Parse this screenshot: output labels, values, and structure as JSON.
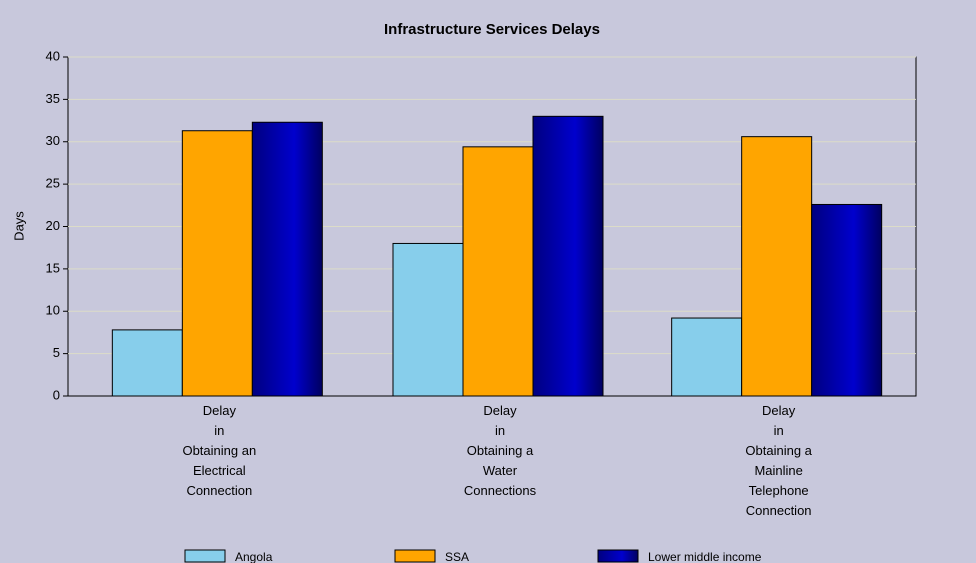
{
  "chart_data": {
    "type": "bar",
    "title": "Infrastructure Services Delays",
    "y_label": "Days",
    "categories": [
      "Delay\nin\nObtaining an\nElectrical\nConnection",
      "Delay\nin\nObtaining a\nWater\nConnections",
      "Delay\nin\nObtaining a\nMainline\nTelephone\nConnection"
    ],
    "series": [
      {
        "name": "Angola",
        "color": "#87ceeb",
        "values": [
          7.8,
          18,
          9.2
        ]
      },
      {
        "name": "SSA",
        "color": "#ffa500",
        "values": [
          31.3,
          29.4,
          30.6
        ]
      },
      {
        "name": "Lower middle income",
        "color": "#0000cd",
        "values": [
          32.3,
          33,
          22.6
        ]
      }
    ],
    "ylim": [
      0,
      40
    ],
    "yticks": [
      0,
      5,
      10,
      15,
      20,
      25,
      30,
      35,
      40
    ],
    "grid": true,
    "legend": "bottom"
  }
}
